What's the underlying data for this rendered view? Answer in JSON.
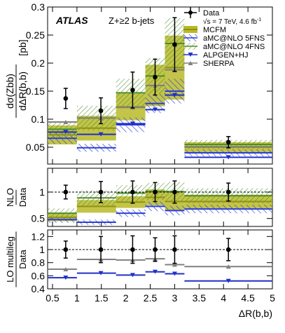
{
  "chart_data": {
    "type": "line",
    "experiment": "ATLAS",
    "selection": "Z+≥2 b-jets",
    "legend_position": "top-right",
    "xlabel": "ΔR(b,b)",
    "x_range": [
      0.4,
      5.0
    ],
    "x_ticks": [
      "0.5",
      "1",
      "1.5",
      "2",
      "2.5",
      "3",
      "3.5",
      "4",
      "4.5",
      "5"
    ],
    "x_bins": [
      [
        0.4,
        1.0
      ],
      [
        1.0,
        1.8
      ],
      [
        1.8,
        2.4
      ],
      [
        2.4,
        2.8
      ],
      [
        2.8,
        3.2
      ],
      [
        3.2,
        5.0
      ]
    ],
    "x_centers": [
      0.77,
      1.49,
      2.14,
      2.6,
      3.0,
      4.1
    ],
    "legend": {
      "data": "Data",
      "data_note_prefix": "√s = 7 TeV, 4.6 fb",
      "data_note_sup": "-1",
      "mcfm": "MCFM",
      "amc5": "aMC@NLO 5FNS",
      "amc4": "aMC@NLO 4FNS",
      "alpgen": "ALPGEN+HJ",
      "sherpa": "SHERPA"
    },
    "colors": {
      "mcfm": "#b8ba28",
      "mcfm_dark": "#8f9214",
      "amc5": "#2b3fd6",
      "amc4": "#4e8e2a",
      "alpgen": "#2030c8",
      "sherpa": "#808080",
      "data": "#000000"
    },
    "panels": [
      {
        "id": "main",
        "ylabel_num": "dσ(Zbb)",
        "ylabel_den": "dΔR(b,b)",
        "yunit": "[pb]",
        "ylim": [
          0.02,
          0.3
        ],
        "yticks": [
          "0.05",
          "0.1",
          "0.15",
          "0.2",
          "0.25",
          "0.3"
        ],
        "data": {
          "values": [
            0.137,
            0.115,
            0.152,
            0.175,
            0.233,
            0.059
          ],
          "err": [
            0.018,
            0.023,
            0.032,
            0.032,
            0.048,
            0.01
          ]
        },
        "mcfm": {
          "values": [
            0.072,
            0.084,
            0.122,
            0.16,
            0.192,
            0.05
          ],
          "err": [
            0.017,
            0.022,
            0.024,
            0.037,
            0.057,
            0.009
          ]
        },
        "amc5": {
          "values": [
            0.066,
            0.049,
            0.09,
            0.128,
            0.15,
            0.04
          ],
          "err": [
            0.01,
            0.007,
            0.013,
            0.017,
            0.022,
            0.006
          ]
        },
        "amc4": {
          "values": [
            0.082,
            0.102,
            0.147,
            0.177,
            0.235,
            0.055
          ],
          "err": [
            0.014,
            0.022,
            0.025,
            0.032,
            0.045,
            0.008
          ]
        },
        "alpgen": {
          "values": [
            0.077,
            0.073,
            0.092,
            0.117,
            0.143,
            0.032
          ]
        },
        "sherpa": {
          "values": [
            0.095,
            0.102,
            0.121,
            0.16,
            0.188,
            0.051
          ]
        }
      },
      {
        "id": "nlo_ratio",
        "ylabel_num": "NLO",
        "ylabel_den": "Data",
        "ylim": [
          0.35,
          1.45
        ],
        "yticks": [
          "0.5",
          "1"
        ],
        "reference": 1.0,
        "data": {
          "values": [
            1,
            1,
            1,
            1,
            1,
            1
          ],
          "err": [
            0.13,
            0.2,
            0.21,
            0.18,
            0.21,
            0.17
          ]
        },
        "mcfm": {
          "values": [
            0.52,
            0.73,
            0.81,
            0.9,
            0.82,
            0.82
          ],
          "err": [
            0.07,
            0.12,
            0.11,
            0.15,
            0.18,
            0.13
          ]
        },
        "amc5": {
          "values": [
            0.48,
            0.43,
            0.6,
            0.73,
            0.65,
            0.68
          ],
          "err": [
            0.06,
            0.05,
            0.07,
            0.09,
            0.09,
            0.08
          ]
        },
        "amc4": {
          "values": [
            0.6,
            0.89,
            0.98,
            1.01,
            1.01,
            0.93
          ],
          "err": [
            0.09,
            0.14,
            0.15,
            0.16,
            0.18,
            0.14
          ]
        }
      },
      {
        "id": "lo_ratio",
        "ylabel_num": "LO multileg",
        "ylabel_den": "Data",
        "ylim": [
          0.4,
          1.3
        ],
        "yticks": [
          "0.4",
          "0.6",
          "0.8",
          "1",
          "1.2"
        ],
        "reference": 1.0,
        "data": {
          "values": [
            1,
            1,
            1,
            1,
            1,
            1
          ],
          "err": [
            0.13,
            0.2,
            0.21,
            0.18,
            0.21,
            0.17
          ]
        },
        "alpgen": {
          "values": [
            0.57,
            0.64,
            0.61,
            0.66,
            0.63,
            0.52
          ]
        },
        "sherpa": {
          "values": [
            0.7,
            0.85,
            0.84,
            0.86,
            0.77,
            0.74
          ]
        }
      }
    ]
  }
}
